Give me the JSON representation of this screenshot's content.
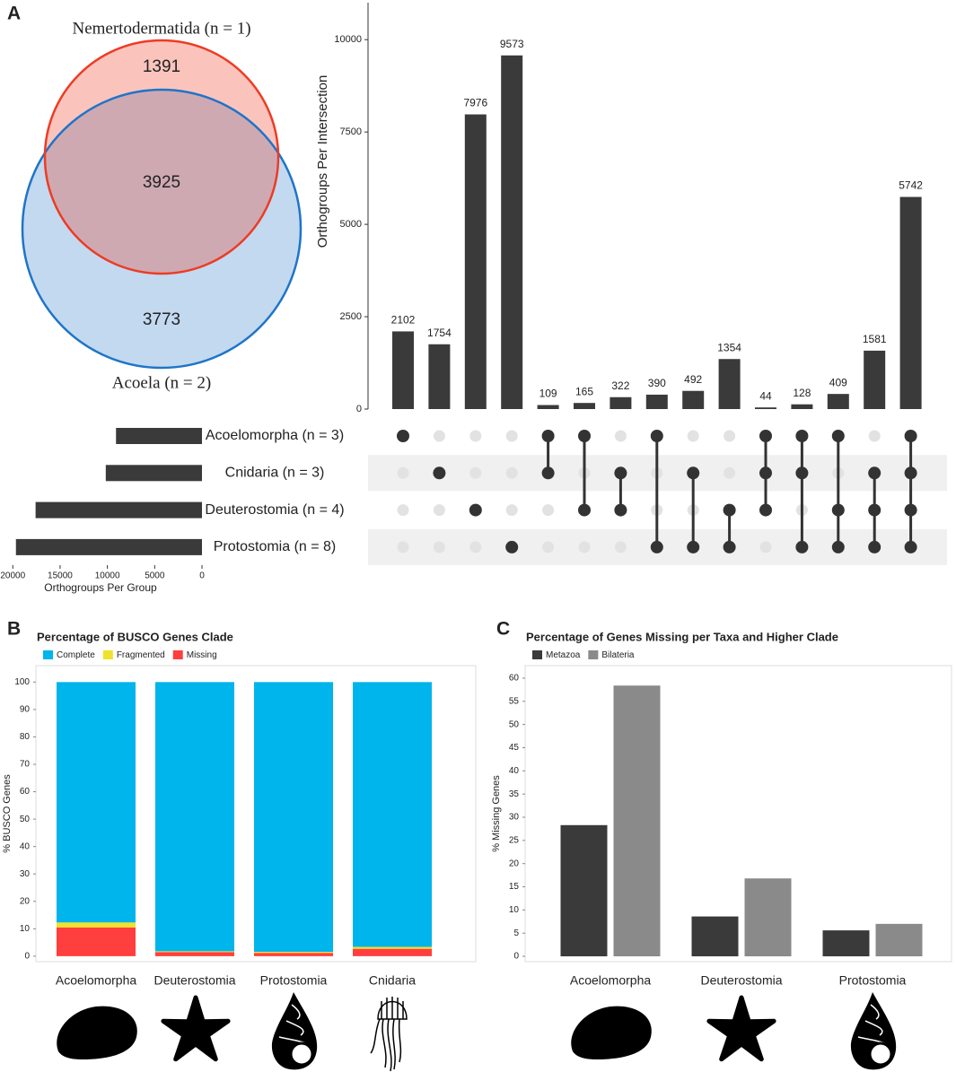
{
  "chart_data": [
    {
      "type": "venn",
      "panel": "A",
      "sets": [
        {
          "name": "Nemertodermatida (n = 1)",
          "color": "#ee3b24"
        },
        {
          "name": "Acoela (n = 2)",
          "color": "#1f74c8"
        }
      ],
      "first_only": 1391,
      "overlap": 3925,
      "second_only": 3773
    },
    {
      "type": "upset",
      "ylabel": "Orthogroups Per Intersection",
      "ylim": [
        0,
        11000
      ],
      "yticks": [
        0,
        2500,
        5000,
        7500,
        10000
      ],
      "color": "#3a3a3a",
      "values": [
        2102,
        1754,
        7976,
        9573,
        109,
        165,
        322,
        390,
        492,
        1354,
        44,
        128,
        409,
        1581,
        5742
      ],
      "intersections": [
        [
          0
        ],
        [
          1
        ],
        [
          2
        ],
        [
          3
        ],
        [
          0,
          1
        ],
        [
          0,
          2
        ],
        [
          1,
          2
        ],
        [
          0,
          3
        ],
        [
          1,
          3
        ],
        [
          2,
          3
        ],
        [
          0,
          1,
          2
        ],
        [
          0,
          1,
          3
        ],
        [
          0,
          2,
          3
        ],
        [
          1,
          2,
          3
        ],
        [
          0,
          1,
          2,
          3
        ]
      ],
      "sets": [
        "Acoelomorpha (n = 3)",
        "Cnidaria (n = 3)",
        "Deuterostomia (n = 4)",
        "Protostomia (n = 8)"
      ],
      "set_sizes": [
        9089,
        10172,
        17593,
        19669
      ],
      "set_xlabel": "Orthogroups Per Group",
      "set_xlim": [
        20500,
        0
      ],
      "set_xticks": [
        20000,
        15000,
        10000,
        5000,
        0
      ]
    },
    {
      "type": "stacked_bar",
      "panel": "B",
      "title": "Percentage of BUSCO Genes Clade",
      "ylabel": "% BUSCO Genes",
      "categories": [
        "Acoelomorpha",
        "Deuterostomia",
        "Protostomia",
        "Cnidaria"
      ],
      "series": [
        {
          "name": "Complete",
          "color": "#00b4ec",
          "values": [
            87.7,
            98.2,
            98.4,
            96.6
          ]
        },
        {
          "name": "Fragmented",
          "color": "#f0e22b",
          "values": [
            1.8,
            0.3,
            0.4,
            0.7
          ]
        },
        {
          "name": "Missing",
          "color": "#ff3e3e",
          "values": [
            10.5,
            1.5,
            1.2,
            2.7
          ]
        }
      ],
      "ylim": [
        -2,
        106
      ],
      "yticks": [
        0,
        10,
        20,
        30,
        40,
        50,
        60,
        70,
        80,
        90,
        100
      ]
    },
    {
      "type": "grouped_bar",
      "panel": "C",
      "title": "Percentage of Genes Missing per Taxa and Higher Clade",
      "ylabel": "% Missing Genes",
      "categories": [
        "Acoelomorpha",
        "Deuterostomia",
        "Protostomia"
      ],
      "series": [
        {
          "name": "Metazoa",
          "color": "#3a3a3a",
          "values": [
            28.3,
            8.6,
            5.6
          ]
        },
        {
          "name": "Bilateria",
          "color": "#8a8a8a",
          "values": [
            58.4,
            16.8,
            7.0
          ]
        }
      ],
      "ylim": [
        -1.15,
        62.7
      ],
      "yticks": [
        0,
        5,
        10,
        15,
        20,
        25,
        30,
        35,
        40,
        45,
        50,
        55,
        60
      ]
    }
  ]
}
